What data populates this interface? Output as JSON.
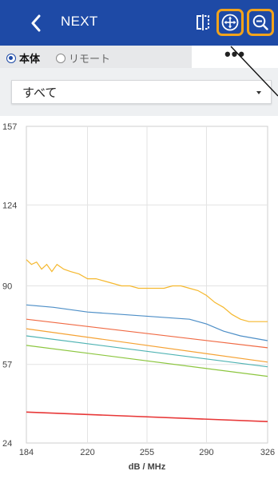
{
  "appbar": {
    "title": "NEXT"
  },
  "icons": {
    "back": "chevron-left-icon",
    "split": "split-view-icon",
    "pan": "move-arrows-icon",
    "zoom": "zoom-out-icon"
  },
  "colors": {
    "primary": "#1e4aa6",
    "highlight": "#f2a31b"
  },
  "source_toggle": {
    "options": [
      {
        "label": "本体",
        "selected": true
      },
      {
        "label": "リモート",
        "selected": false
      }
    ],
    "more": "•••"
  },
  "filter": {
    "value": "すべて"
  },
  "chart_data": {
    "type": "line",
    "xlabel": "dB / MHz",
    "xlim": [
      184,
      326
    ],
    "ylim": [
      24,
      157
    ],
    "xticks": [
      184,
      220,
      255,
      290,
      326
    ],
    "yticks": [
      24,
      57,
      90,
      124,
      157
    ],
    "grid": true,
    "series": [
      {
        "color": "#f5b82e",
        "x": [
          184,
          187,
          190,
          193,
          196,
          199,
          202,
          206,
          210,
          215,
          220,
          225,
          230,
          235,
          240,
          245,
          250,
          255,
          260,
          265,
          270,
          275,
          280,
          285,
          290,
          295,
          300,
          305,
          310,
          315,
          320,
          326
        ],
        "y": [
          101,
          99,
          100,
          97,
          99,
          96,
          99,
          97,
          96,
          95,
          93,
          93,
          92,
          91,
          90,
          90,
          89,
          89,
          89,
          89,
          90,
          90,
          89,
          88,
          86,
          83,
          81,
          78,
          76,
          75,
          75,
          75
        ]
      },
      {
        "color": "#4e8fc7",
        "x": [
          184,
          200,
          220,
          240,
          260,
          280,
          290,
          300,
          310,
          326
        ],
        "y": [
          82,
          81,
          79,
          78,
          77,
          76,
          74,
          71,
          69,
          67
        ]
      },
      {
        "color": "#f06a44",
        "x": [
          184,
          326
        ],
        "y": [
          76,
          64
        ]
      },
      {
        "color": "#f5a234",
        "x": [
          184,
          326
        ],
        "y": [
          72,
          58
        ]
      },
      {
        "color": "#4fb3b3",
        "x": [
          184,
          326
        ],
        "y": [
          69,
          56
        ]
      },
      {
        "color": "#8cc63f",
        "x": [
          184,
          326
        ],
        "y": [
          65,
          52
        ]
      },
      {
        "color": "#e83838",
        "x": [
          184,
          326
        ],
        "y": [
          37,
          33
        ]
      }
    ]
  }
}
